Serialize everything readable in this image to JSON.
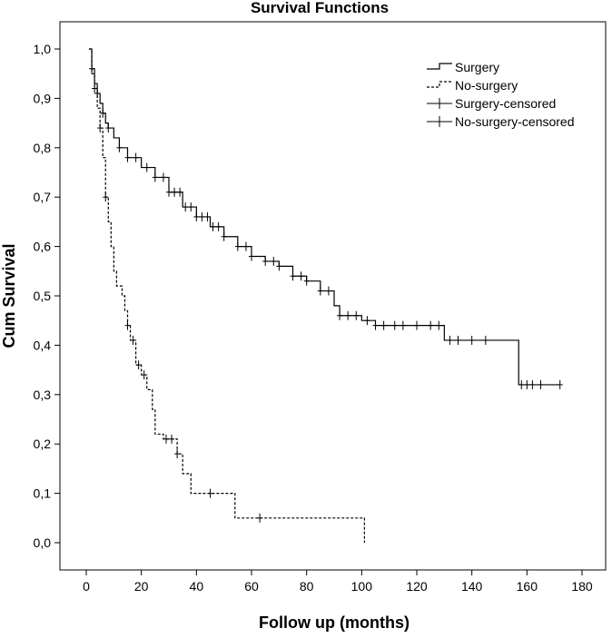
{
  "chart_data": {
    "type": "line",
    "title": "Survival Functions",
    "xlabel": "Follow up (months)",
    "ylabel": "Cum Survival",
    "xlim": [
      -10,
      185
    ],
    "ylim": [
      -0.05,
      1.05
    ],
    "x_ticks": [
      0,
      20,
      40,
      60,
      80,
      100,
      120,
      140,
      160,
      180
    ],
    "y_ticks": [
      0.0,
      0.1,
      0.2,
      0.3,
      0.4,
      0.5,
      0.6,
      0.7,
      0.8,
      0.9,
      1.0
    ],
    "x_tick_labels": [
      "0",
      "20",
      "40",
      "60",
      "80",
      "100",
      "120",
      "140",
      "160",
      "180"
    ],
    "y_tick_labels": [
      "0,0",
      "0,1",
      "0,2",
      "0,3",
      "0,4",
      "0,5",
      "0,6",
      "0,7",
      "0,8",
      "0,9",
      "1,0"
    ],
    "legend_position": "top-right",
    "legend": [
      "Surgery",
      "No-surgery",
      "Surgery-censored",
      "No-surgery-censored"
    ],
    "grid": false,
    "series": [
      {
        "name": "Surgery",
        "style": "solid",
        "color": "#000000",
        "step_points": [
          [
            1,
            1.0
          ],
          [
            2,
            0.96
          ],
          [
            3,
            0.93
          ],
          [
            4,
            0.91
          ],
          [
            5,
            0.89
          ],
          [
            6,
            0.87
          ],
          [
            7,
            0.85
          ],
          [
            8,
            0.84
          ],
          [
            10,
            0.82
          ],
          [
            12,
            0.8
          ],
          [
            15,
            0.78
          ],
          [
            20,
            0.76
          ],
          [
            25,
            0.74
          ],
          [
            30,
            0.71
          ],
          [
            35,
            0.68
          ],
          [
            40,
            0.66
          ],
          [
            45,
            0.64
          ],
          [
            50,
            0.62
          ],
          [
            55,
            0.6
          ],
          [
            60,
            0.58
          ],
          [
            65,
            0.57
          ],
          [
            70,
            0.56
          ],
          [
            75,
            0.54
          ],
          [
            80,
            0.53
          ],
          [
            85,
            0.51
          ],
          [
            90,
            0.48
          ],
          [
            92,
            0.46
          ],
          [
            100,
            0.45
          ],
          [
            105,
            0.44
          ],
          [
            130,
            0.41
          ],
          [
            157,
            0.32
          ],
          [
            172,
            0.32
          ]
        ],
        "censored_x": [
          2,
          4,
          6,
          8,
          12,
          15,
          18,
          22,
          25,
          28,
          30,
          32,
          34,
          36,
          38,
          40,
          42,
          44,
          46,
          48,
          50,
          55,
          58,
          60,
          65,
          68,
          70,
          75,
          78,
          80,
          85,
          88,
          92,
          95,
          98,
          102,
          105,
          108,
          112,
          115,
          120,
          125,
          128,
          132,
          135,
          140,
          145,
          158,
          160,
          162,
          165,
          172
        ]
      },
      {
        "name": "No-surgery",
        "style": "dashed",
        "color": "#000000",
        "step_points": [
          [
            1,
            1.0
          ],
          [
            2,
            0.95
          ],
          [
            3,
            0.92
          ],
          [
            4,
            0.88
          ],
          [
            5,
            0.84
          ],
          [
            6,
            0.78
          ],
          [
            7,
            0.7
          ],
          [
            8,
            0.65
          ],
          [
            9,
            0.6
          ],
          [
            10,
            0.55
          ],
          [
            11,
            0.52
          ],
          [
            13,
            0.5
          ],
          [
            14,
            0.47
          ],
          [
            15,
            0.44
          ],
          [
            16,
            0.41
          ],
          [
            18,
            0.36
          ],
          [
            20,
            0.34
          ],
          [
            22,
            0.31
          ],
          [
            24,
            0.27
          ],
          [
            25,
            0.22
          ],
          [
            28,
            0.21
          ],
          [
            33,
            0.18
          ],
          [
            35,
            0.14
          ],
          [
            38,
            0.1
          ],
          [
            54,
            0.05
          ],
          [
            101,
            0.0
          ]
        ],
        "censored_x": [
          3,
          5,
          7,
          15,
          17,
          19,
          21,
          29,
          31,
          33,
          45,
          63
        ]
      }
    ]
  }
}
